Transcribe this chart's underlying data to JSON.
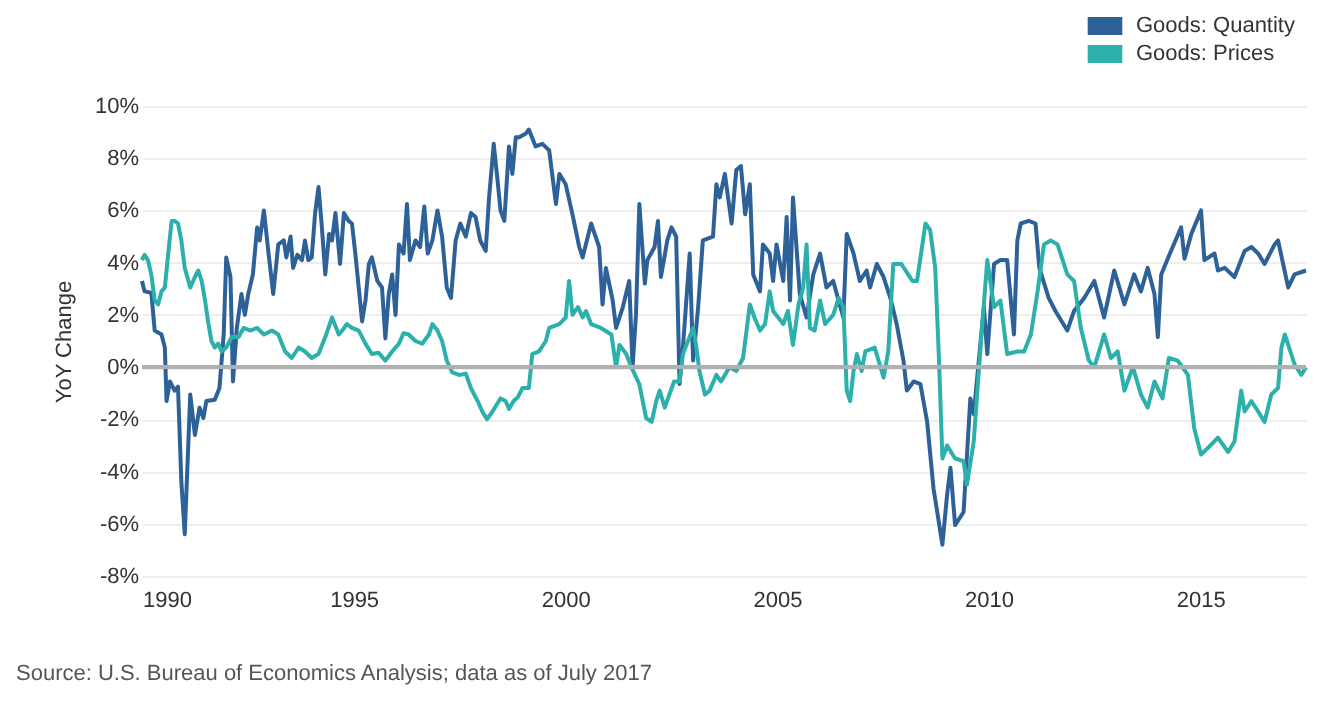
{
  "chart_data": {
    "type": "line",
    "ylabel": "YoY Change",
    "annotations": [
      "Source: U.S. Bureau of Economics Analysis; data as of July 2017"
    ],
    "xlim": [
      1990,
      2017.5
    ],
    "xticks": [
      1990,
      1995,
      2000,
      2005,
      2010,
      2015
    ],
    "ylim": [
      -8,
      10
    ],
    "yticks": [
      {
        "value": -8,
        "label": "-8%"
      },
      {
        "value": -6,
        "label": "-6%"
      },
      {
        "value": -4,
        "label": "-4%"
      },
      {
        "value": -2,
        "label": "-2%"
      },
      {
        "value": 0,
        "label": "0%"
      },
      {
        "value": 2,
        "label": "2%"
      },
      {
        "value": 4,
        "label": "4%"
      },
      {
        "value": 6,
        "label": "6%"
      },
      {
        "value": 8,
        "label": "8%"
      },
      {
        "value": 10,
        "label": "10%"
      }
    ],
    "grid": "y",
    "legend": "top right",
    "marker": "none",
    "line_style": "solid",
    "ref_lines": [
      {
        "axis": "y",
        "value": 0,
        "color": "#b0b0b0"
      }
    ],
    "series": [
      {
        "name": "Goods: Quantity",
        "color": "#2e6197",
        "x": [
          1990.0,
          1990.06,
          1990.22,
          1990.3,
          1990.46,
          1990.54,
          1990.58,
          1990.66,
          1990.77,
          1990.85,
          1990.93,
          1991.01,
          1991.14,
          1991.25,
          1991.36,
          1991.45,
          1991.52,
          1991.72,
          1991.83,
          1991.93,
          1991.99,
          1992.09,
          1992.15,
          1992.24,
          1992.35,
          1992.43,
          1992.51,
          1992.62,
          1992.72,
          1992.78,
          1992.88,
          1992.99,
          1993.1,
          1993.22,
          1993.35,
          1993.41,
          1993.51,
          1993.57,
          1993.67,
          1993.78,
          1993.85,
          1993.93,
          1994.01,
          1994.09,
          1994.17,
          1994.25,
          1994.33,
          1994.42,
          1994.49,
          1994.57,
          1994.68,
          1994.77,
          1994.88,
          1994.96,
          1995.04,
          1995.12,
          1995.2,
          1995.28,
          1995.36,
          1995.43,
          1995.56,
          1995.67,
          1995.75,
          1995.83,
          1995.91,
          1995.99,
          1996.07,
          1996.18,
          1996.26,
          1996.33,
          1996.46,
          1996.57,
          1996.67,
          1996.75,
          1996.86,
          1996.98,
          1997.09,
          1997.2,
          1997.3,
          1997.41,
          1997.52,
          1997.65,
          1997.77,
          1997.88,
          1997.99,
          1998.12,
          1998.2,
          1998.31,
          1998.4,
          1998.47,
          1998.56,
          1998.67,
          1998.75,
          1998.83,
          1998.91,
          1999.07,
          1999.14,
          1999.3,
          1999.46,
          1999.62,
          1999.78,
          1999.86,
          2000.01,
          2000.17,
          2000.33,
          2000.41,
          2000.61,
          2000.8,
          2000.88,
          2000.96,
          2001.12,
          2001.2,
          2001.36,
          2001.51,
          2001.59,
          2001.67,
          2001.75,
          2001.88,
          2001.94,
          2002.11,
          2002.19,
          2002.26,
          2002.41,
          2002.51,
          2002.62,
          2002.7,
          2002.78,
          2002.94,
          2003.02,
          2003.14,
          2003.25,
          2003.49,
          2003.57,
          2003.65,
          2003.77,
          2003.93,
          2004.04,
          2004.15,
          2004.25,
          2004.36,
          2004.44,
          2004.6,
          2004.67,
          2004.83,
          2004.91,
          2004.99,
          2005.15,
          2005.23,
          2005.31,
          2005.38,
          2005.54,
          2005.7,
          2005.86,
          2006.02,
          2006.17,
          2006.33,
          2006.57,
          2006.65,
          2006.81,
          2006.96,
          2007.12,
          2007.2,
          2007.36,
          2007.52,
          2007.68,
          2007.83,
          2007.99,
          2008.07,
          2008.23,
          2008.39,
          2008.55,
          2008.7,
          2008.91,
          2009.02,
          2009.1,
          2009.21,
          2009.41,
          2009.57,
          2009.65,
          2009.89,
          2009.97,
          2010.13,
          2010.28,
          2010.44,
          2010.6,
          2010.68,
          2010.76,
          2010.95,
          2011.11,
          2011.2,
          2011.42,
          2011.58,
          2011.86,
          2012.02,
          2012.26,
          2012.5,
          2012.73,
          2012.97,
          2013.21,
          2013.44,
          2013.6,
          2013.76,
          2013.92,
          2014.0,
          2014.08,
          2014.31,
          2014.55,
          2014.63,
          2014.79,
          2015.02,
          2015.1,
          2015.34,
          2015.42,
          2015.58,
          2015.81,
          2016.05,
          2016.21,
          2016.37,
          2016.52,
          2016.76,
          2016.84,
          2017.08,
          2017.23,
          2017.5
        ],
        "values": [
          3.3,
          2.9,
          2.85,
          1.4,
          1.25,
          0.75,
          -1.3,
          -0.55,
          -0.9,
          -0.75,
          -4.4,
          -6.4,
          -1.05,
          -2.6,
          -1.55,
          -1.95,
          -1.3,
          -1.25,
          -0.8,
          1.25,
          4.2,
          3.45,
          -0.55,
          1.5,
          2.8,
          2.0,
          2.8,
          3.55,
          5.35,
          4.85,
          6.0,
          4.35,
          2.8,
          4.7,
          4.85,
          4.2,
          5.0,
          3.8,
          4.3,
          4.1,
          4.85,
          4.1,
          4.2,
          5.9,
          6.9,
          5.35,
          3.55,
          5.1,
          4.85,
          5.9,
          3.95,
          5.9,
          5.6,
          5.5,
          4.35,
          3.05,
          1.75,
          2.55,
          3.95,
          4.2,
          3.3,
          3.05,
          1.1,
          2.8,
          3.55,
          2.0,
          4.7,
          4.35,
          6.25,
          4.1,
          4.85,
          4.6,
          6.15,
          4.35,
          4.85,
          6.0,
          5.0,
          3.05,
          2.65,
          4.85,
          5.5,
          5.0,
          5.9,
          5.75,
          4.85,
          4.45,
          6.5,
          8.55,
          7.15,
          6.0,
          5.6,
          8.45,
          7.4,
          8.8,
          8.8,
          8.95,
          9.1,
          8.45,
          8.55,
          8.3,
          6.25,
          7.4,
          7.0,
          5.85,
          4.6,
          4.2,
          5.5,
          4.6,
          2.4,
          3.8,
          2.55,
          1.5,
          2.3,
          3.3,
          0.0,
          2.0,
          6.25,
          3.2,
          4.1,
          4.6,
          5.6,
          3.45,
          4.85,
          5.35,
          5.0,
          -0.65,
          0.75,
          4.35,
          0.25,
          2.3,
          4.85,
          5.0,
          7.0,
          6.5,
          7.4,
          5.5,
          7.55,
          7.7,
          5.85,
          7.0,
          3.55,
          2.9,
          4.7,
          4.35,
          3.3,
          4.7,
          3.3,
          5.75,
          2.55,
          6.5,
          2.8,
          1.9,
          3.55,
          4.35,
          3.05,
          3.3,
          1.9,
          5.1,
          4.35,
          3.3,
          3.7,
          3.05,
          3.95,
          3.45,
          2.65,
          1.65,
          0.25,
          -0.9,
          -0.55,
          -0.65,
          -2.1,
          -4.65,
          -6.8,
          -4.9,
          -3.85,
          -6.05,
          -5.55,
          -1.2,
          -1.8,
          2.3,
          0.5,
          3.95,
          4.1,
          4.1,
          1.25,
          4.85,
          5.5,
          5.6,
          5.5,
          3.8,
          2.65,
          2.15,
          1.4,
          2.15,
          2.65,
          3.3,
          1.9,
          3.7,
          2.4,
          3.55,
          2.9,
          3.8,
          2.8,
          1.15,
          3.55,
          4.45,
          5.35,
          4.15,
          5.1,
          6.0,
          4.1,
          4.35,
          3.7,
          3.8,
          3.45,
          4.45,
          4.6,
          4.35,
          3.95,
          4.7,
          4.85,
          3.05,
          3.55,
          3.7
        ]
      },
      {
        "name": "Goods: Prices",
        "color": "#2bb0ab",
        "x": [
          1990.0,
          1990.06,
          1990.14,
          1990.22,
          1990.3,
          1990.38,
          1990.46,
          1990.54,
          1990.62,
          1990.7,
          1990.77,
          1990.85,
          1990.93,
          1991.01,
          1991.14,
          1991.25,
          1991.33,
          1991.41,
          1991.49,
          1991.56,
          1991.64,
          1991.72,
          1991.8,
          1991.88,
          1991.99,
          1992.12,
          1992.28,
          1992.4,
          1992.56,
          1992.72,
          1992.88,
          1993.07,
          1993.22,
          1993.38,
          1993.54,
          1993.7,
          1993.85,
          1994.01,
          1994.17,
          1994.33,
          1994.49,
          1994.65,
          1994.73,
          1994.84,
          1994.96,
          1995.12,
          1995.28,
          1995.43,
          1995.59,
          1995.75,
          1995.91,
          1996.07,
          1996.18,
          1996.3,
          1996.46,
          1996.62,
          1996.78,
          1996.86,
          1996.98,
          1997.09,
          1997.2,
          1997.33,
          1997.49,
          1997.65,
          1997.77,
          1997.93,
          1998.04,
          1998.15,
          1998.28,
          1998.47,
          1998.59,
          1998.67,
          1998.78,
          1998.88,
          1998.99,
          1999.14,
          1999.22,
          1999.38,
          1999.54,
          1999.62,
          1999.86,
          2000.01,
          2000.09,
          2000.17,
          2000.3,
          2000.41,
          2000.49,
          2000.61,
          2000.84,
          2001.09,
          2001.2,
          2001.28,
          2001.44,
          2001.56,
          2001.75,
          2001.91,
          2002.04,
          2002.15,
          2002.23,
          2002.35,
          2002.46,
          2002.57,
          2002.7,
          2002.78,
          2003.02,
          2003.09,
          2003.17,
          2003.3,
          2003.41,
          2003.57,
          2003.68,
          2003.88,
          2004.04,
          2004.2,
          2004.36,
          2004.47,
          2004.6,
          2004.72,
          2004.83,
          2004.91,
          2005.15,
          2005.26,
          2005.38,
          2005.51,
          2005.62,
          2005.7,
          2005.78,
          2005.89,
          2006.02,
          2006.14,
          2006.33,
          2006.46,
          2006.57,
          2006.65,
          2006.73,
          2006.81,
          2006.89,
          2007.0,
          2007.09,
          2007.31,
          2007.52,
          2007.63,
          2007.75,
          2007.94,
          2008.2,
          2008.31,
          2008.51,
          2008.62,
          2008.74,
          2008.83,
          2008.91,
          2009.02,
          2009.21,
          2009.41,
          2009.49,
          2009.65,
          2009.81,
          2009.97,
          2010.13,
          2010.28,
          2010.44,
          2010.68,
          2010.84,
          2011.0,
          2011.15,
          2011.31,
          2011.47,
          2011.63,
          2011.86,
          2012.02,
          2012.18,
          2012.37,
          2012.5,
          2012.73,
          2012.89,
          2013.05,
          2013.21,
          2013.41,
          2013.6,
          2013.76,
          2013.92,
          2014.11,
          2014.26,
          2014.47,
          2014.71,
          2014.86,
          2015.02,
          2015.18,
          2015.42,
          2015.66,
          2015.81,
          2015.97,
          2016.05,
          2016.21,
          2016.37,
          2016.52,
          2016.68,
          2016.84,
          2016.92,
          2017.0,
          2017.23,
          2017.39,
          2017.5
        ],
        "values": [
          4.1,
          4.3,
          4.1,
          3.55,
          2.55,
          2.4,
          2.9,
          3.05,
          4.35,
          5.6,
          5.6,
          5.5,
          4.85,
          3.8,
          3.05,
          3.45,
          3.7,
          3.3,
          2.55,
          1.75,
          1.0,
          0.75,
          0.9,
          0.6,
          0.75,
          1.15,
          1.15,
          1.5,
          1.4,
          1.5,
          1.25,
          1.4,
          1.25,
          0.6,
          0.35,
          0.75,
          0.6,
          0.35,
          0.5,
          1.15,
          1.9,
          1.25,
          1.4,
          1.65,
          1.5,
          1.4,
          0.9,
          0.5,
          0.55,
          0.25,
          0.6,
          0.9,
          1.3,
          1.25,
          1.0,
          0.9,
          1.25,
          1.65,
          1.4,
          1.0,
          0.25,
          -0.2,
          -0.3,
          -0.25,
          -0.8,
          -1.3,
          -1.7,
          -2.0,
          -1.7,
          -1.2,
          -1.3,
          -1.6,
          -1.3,
          -1.15,
          -0.8,
          -0.8,
          0.5,
          0.6,
          1.0,
          1.5,
          1.65,
          1.9,
          3.3,
          2.0,
          2.3,
          1.9,
          2.15,
          1.65,
          1.5,
          1.25,
          0.0,
          0.85,
          0.5,
          0.0,
          -0.65,
          -1.95,
          -2.1,
          -1.3,
          -0.9,
          -1.55,
          -1.05,
          -0.55,
          -0.55,
          0.5,
          1.5,
          0.85,
          -0.15,
          -1.05,
          -0.9,
          -0.3,
          -0.55,
          0.0,
          -0.15,
          0.35,
          2.4,
          1.9,
          1.4,
          1.65,
          2.9,
          2.15,
          1.65,
          2.15,
          0.85,
          2.4,
          3.05,
          4.7,
          1.5,
          1.4,
          2.55,
          1.65,
          2.0,
          2.65,
          2.3,
          -0.9,
          -1.3,
          -0.15,
          0.5,
          -0.15,
          0.6,
          0.75,
          -0.4,
          0.6,
          3.95,
          3.95,
          3.3,
          3.3,
          5.5,
          5.25,
          3.8,
          0.25,
          -3.5,
          -3.0,
          -3.5,
          -3.6,
          -4.5,
          -2.85,
          0.75,
          4.1,
          2.3,
          2.55,
          0.5,
          0.6,
          0.6,
          1.25,
          2.8,
          4.7,
          4.85,
          4.7,
          3.55,
          3.3,
          1.5,
          0.25,
          0.0,
          1.25,
          0.35,
          0.6,
          -0.9,
          0.0,
          -1.05,
          -1.55,
          -0.55,
          -1.2,
          0.35,
          0.25,
          -0.3,
          -2.35,
          -3.35,
          -3.1,
          -2.7,
          -3.25,
          -2.85,
          -0.9,
          -1.7,
          -1.3,
          -1.7,
          -2.1,
          -1.05,
          -0.8,
          0.75,
          1.25,
          0.1,
          -0.3,
          0.0
        ]
      }
    ]
  }
}
